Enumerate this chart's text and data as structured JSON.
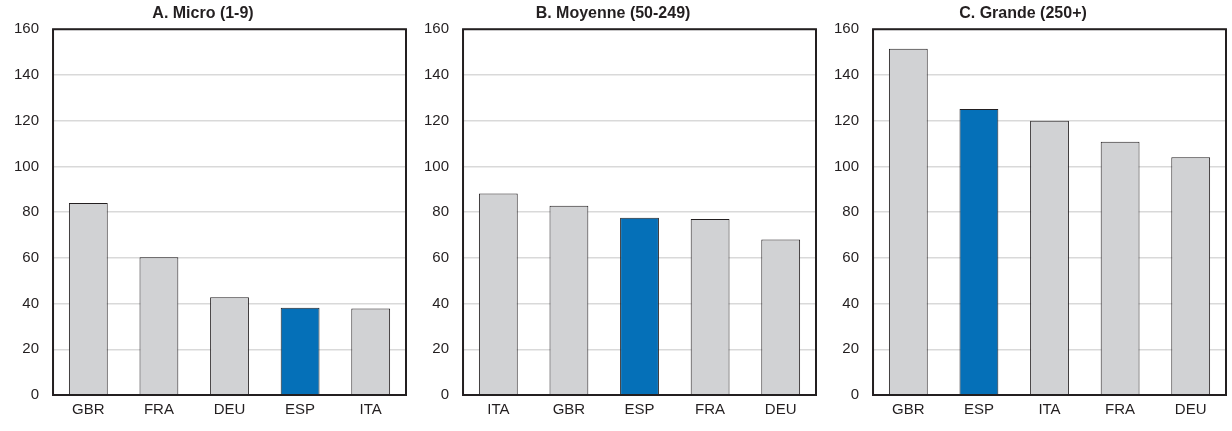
{
  "chart_data": [
    {
      "type": "bar",
      "title": "A. Micro (1-9)",
      "categories": [
        "GBR",
        "FRA",
        "DEU",
        "ESP",
        "ITA"
      ],
      "values": [
        84,
        60.3,
        42.8,
        38.2,
        37.8
      ],
      "colors": [
        "#d1d2d4",
        "#d1d2d4",
        "#d1d2d4",
        "#0570b8",
        "#d1d2d4"
      ],
      "ylim": [
        0,
        160
      ],
      "yticks": [
        0,
        20,
        40,
        60,
        80,
        100,
        120,
        140,
        160
      ],
      "grid": "y"
    },
    {
      "type": "bar",
      "title": "B. Moyenne (50-249)",
      "categories": [
        "ITA",
        "GBR",
        "ESP",
        "FRA",
        "DEU"
      ],
      "values": [
        88.1,
        82.8,
        77.5,
        77,
        68
      ],
      "colors": [
        "#d1d2d4",
        "#d1d2d4",
        "#0570b8",
        "#d1d2d4",
        "#d1d2d4"
      ],
      "ylim": [
        0,
        160
      ],
      "yticks": [
        0,
        20,
        40,
        60,
        80,
        100,
        120,
        140,
        160
      ],
      "grid": "y"
    },
    {
      "type": "bar",
      "title": "C. Grande (250+)",
      "categories": [
        "GBR",
        "ESP",
        "ITA",
        "FRA",
        "DEU"
      ],
      "values": [
        151.5,
        125.1,
        120,
        110.8,
        104
      ],
      "colors": [
        "#d1d2d4",
        "#0570b8",
        "#d1d2d4",
        "#d1d2d4",
        "#d1d2d4"
      ],
      "ylim": [
        0,
        160
      ],
      "yticks": [
        0,
        20,
        40,
        60,
        80,
        100,
        120,
        140,
        160
      ],
      "grid": "y"
    }
  ]
}
